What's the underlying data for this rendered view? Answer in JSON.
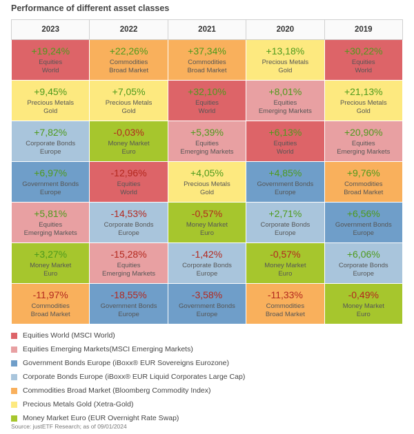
{
  "chart_data": {
    "type": "table",
    "title": "Performance of different asset classes",
    "columns": [
      "2023",
      "2022",
      "2021",
      "2020",
      "2019"
    ],
    "classes": {
      "eqw": {
        "line1": "Equities",
        "line2": "World",
        "color": "#dd6468"
      },
      "eqem": {
        "line1": "Equities",
        "line2": "Emerging Markets",
        "color": "#e8a0a2"
      },
      "gov": {
        "line1": "Government Bonds",
        "line2": "Europe",
        "color": "#6f9ec9"
      },
      "corp": {
        "line1": "Corporate Bonds",
        "line2": "Europe",
        "color": "#a9c5dc"
      },
      "comm": {
        "line1": "Commodities",
        "line2": "Broad Market",
        "color": "#f9b05c"
      },
      "gold": {
        "line1": "Precious Metals",
        "line2": "Gold",
        "color": "#fde97f"
      },
      "mm": {
        "line1": "Money Market",
        "line2": "Euro",
        "color": "#a6c62d"
      }
    },
    "positive_color": "#4e9a1c",
    "negative_color": "#b3281e",
    "rows": [
      [
        {
          "value": "+19,24%",
          "cls": "eqw"
        },
        {
          "value": "+22,26%",
          "cls": "comm"
        },
        {
          "value": "+37,34%",
          "cls": "comm"
        },
        {
          "value": "+13,18%",
          "cls": "gold"
        },
        {
          "value": "+30,22%",
          "cls": "eqw"
        }
      ],
      [
        {
          "value": "+9,45%",
          "cls": "gold"
        },
        {
          "value": "+7,05%",
          "cls": "gold"
        },
        {
          "value": "+32,10%",
          "cls": "eqw"
        },
        {
          "value": "+8,01%",
          "cls": "eqem"
        },
        {
          "value": "+21,13%",
          "cls": "gold"
        }
      ],
      [
        {
          "value": "+7,82%",
          "cls": "corp"
        },
        {
          "value": "-0,03%",
          "cls": "mm"
        },
        {
          "value": "+5,39%",
          "cls": "eqem"
        },
        {
          "value": "+6,13%",
          "cls": "eqw"
        },
        {
          "value": "+20,90%",
          "cls": "eqem"
        }
      ],
      [
        {
          "value": "+6,97%",
          "cls": "gov"
        },
        {
          "value": "-12,96%",
          "cls": "eqw"
        },
        {
          "value": "+4,05%",
          "cls": "gold"
        },
        {
          "value": "+4,85%",
          "cls": "gov"
        },
        {
          "value": "+9,76%",
          "cls": "comm"
        }
      ],
      [
        {
          "value": "+5,81%",
          "cls": "eqem"
        },
        {
          "value": "-14,53%",
          "cls": "corp"
        },
        {
          "value": "-0,57%",
          "cls": "mm"
        },
        {
          "value": "+2,71%",
          "cls": "corp"
        },
        {
          "value": "+6,56%",
          "cls": "gov"
        }
      ],
      [
        {
          "value": "+3,27%",
          "cls": "mm"
        },
        {
          "value": "-15,28%",
          "cls": "eqem"
        },
        {
          "value": "-1,42%",
          "cls": "corp"
        },
        {
          "value": "-0,57%",
          "cls": "mm"
        },
        {
          "value": "+6,06%",
          "cls": "corp"
        }
      ],
      [
        {
          "value": "-11,97%",
          "cls": "comm"
        },
        {
          "value": "-18,55%",
          "cls": "gov"
        },
        {
          "value": "-3,58%",
          "cls": "gov"
        },
        {
          "value": "-11,33%",
          "cls": "comm"
        },
        {
          "value": "-0,49%",
          "cls": "mm"
        }
      ]
    ],
    "legend": [
      {
        "label": "Equities World (MSCI World)",
        "cls": "eqw"
      },
      {
        "label": "Equities Emerging Markets(MSCI Emerging Markets)",
        "cls": "eqem"
      },
      {
        "label": "Government Bonds Europe (iBoxx® EUR Sovereigns Eurozone)",
        "cls": "gov"
      },
      {
        "label": "Corporate Bonds Europe (iBoxx® EUR Liquid Corporates Large Cap)",
        "cls": "corp"
      },
      {
        "label": "Commodities Broad Market (Bloomberg Commodity Index)",
        "cls": "comm"
      },
      {
        "label": "Precious Metals Gold (Xetra-Gold)",
        "cls": "gold"
      },
      {
        "label": "Money Market Euro (EUR Overnight Rate Swap)",
        "cls": "mm"
      }
    ],
    "source": "Source: justETF Research; as of 09/01/2024"
  }
}
